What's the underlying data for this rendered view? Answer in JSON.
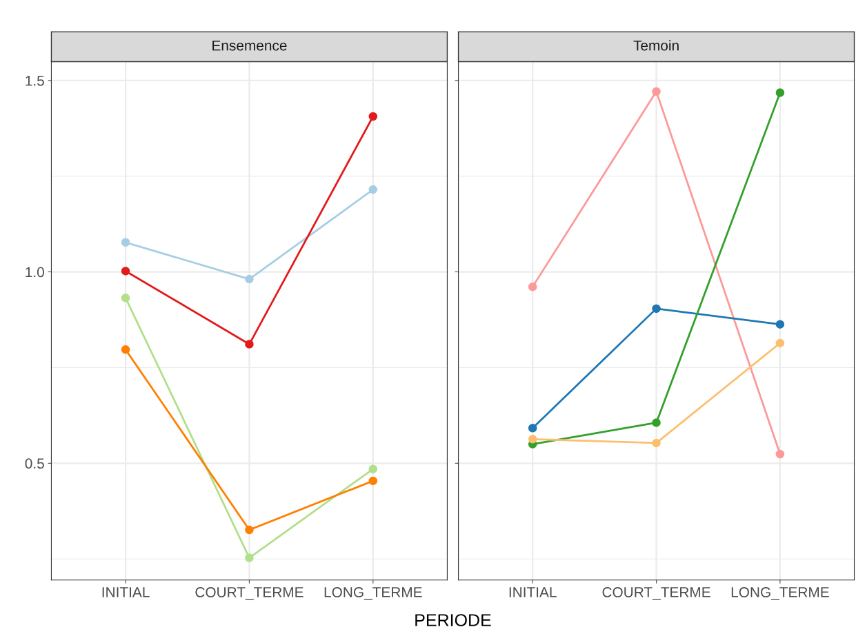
{
  "chart_data": [
    {
      "type": "line",
      "title": "Ensemence",
      "xlabel": "PERIODE",
      "categories": [
        "INITIAL",
        "COURT_TERME",
        "LONG_TERME"
      ],
      "ylim": [
        0.195,
        1.549
      ],
      "yticks": [
        {
          "value": 0.25,
          "label": null
        },
        0.5,
        {
          "value": 0.75,
          "label": null
        },
        {
          "value": 1.0,
          "label": "1.0"
        },
        {
          "value": 1.25,
          "label": null
        },
        1.5
      ],
      "grid": true,
      "marker": "circle",
      "line_style": "solid",
      "series": [
        {
          "color": "#a6cee3",
          "values": [
            1.077,
            0.981,
            1.215
          ]
        },
        {
          "color": "#e31a1c",
          "values": [
            1.002,
            0.811,
            1.406
          ]
        },
        {
          "color": "#b2df8a",
          "values": [
            0.932,
            0.253,
            0.485
          ]
        },
        {
          "color": "#ff7f00",
          "values": [
            0.797,
            0.326,
            0.454
          ]
        }
      ]
    },
    {
      "type": "line",
      "title": "Temoin",
      "categories": [
        "INITIAL",
        "COURT_TERME",
        "LONG_TERME"
      ],
      "ylim": [
        0.195,
        1.549
      ],
      "yticks": [
        {
          "value": 0.25,
          "label": null
        },
        0.5,
        {
          "value": 0.75,
          "label": null
        },
        1,
        {
          "value": 1.25,
          "label": null
        },
        1.5
      ],
      "tick_labels": "x",
      "grid": true,
      "marker": "circle",
      "line_style": "solid",
      "series": [
        {
          "color": "#fb9a99",
          "values": [
            0.961,
            1.471,
            0.524
          ]
        },
        {
          "color": "#1f78b4",
          "values": [
            0.592,
            0.904,
            0.863
          ]
        },
        {
          "color": "#33a02c",
          "values": [
            0.55,
            0.606,
            1.468
          ]
        },
        {
          "color": "#fdbf6f",
          "values": [
            0.563,
            0.553,
            0.814
          ]
        }
      ]
    }
  ]
}
